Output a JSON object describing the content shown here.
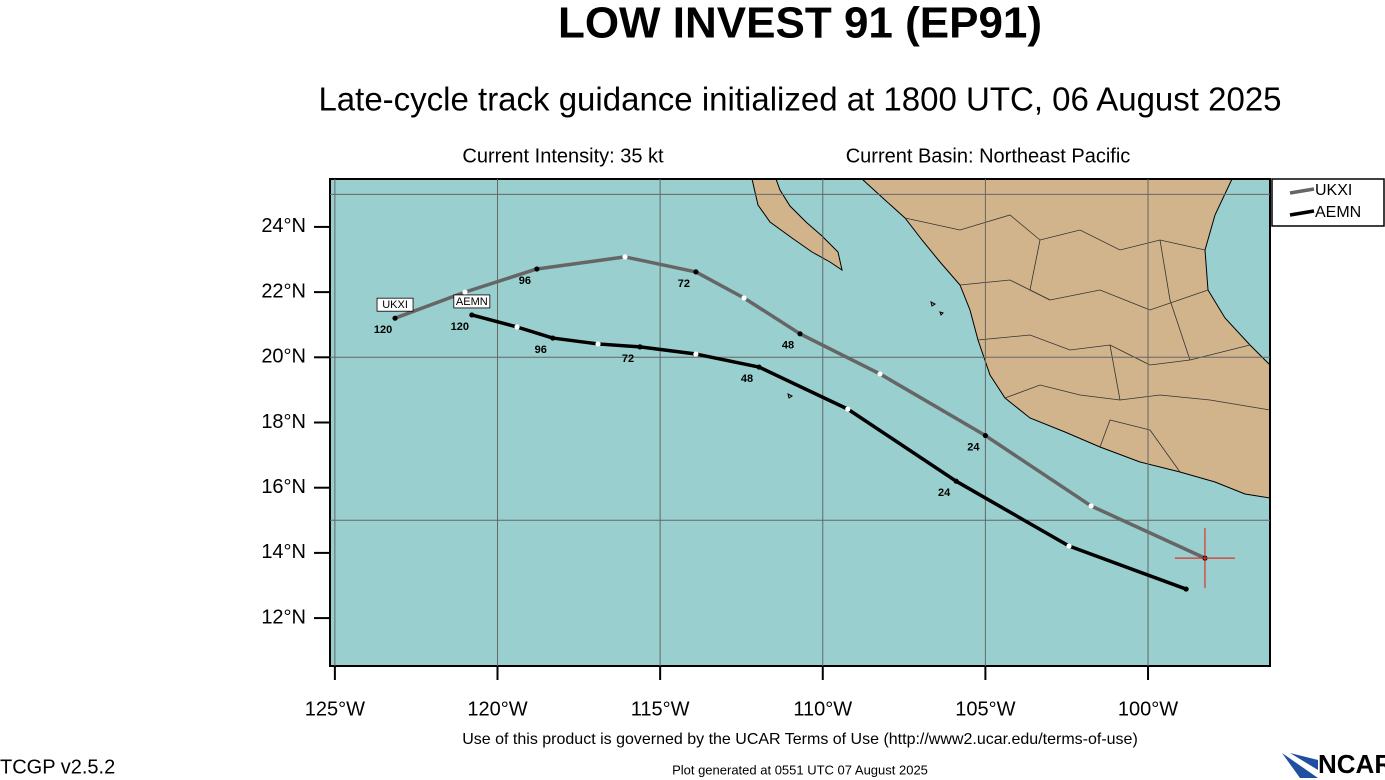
{
  "chart_data": {
    "type": "track",
    "title": "LOW INVEST 91 (EP91)",
    "subtitle": "Late-cycle track guidance initialized at 1800 UTC, 06 August 2025",
    "intensity": "Current Intensity: 35 kt",
    "basin": "Current Basin: Northeast Pacific",
    "xlim": [
      -125.15,
      -96.25
    ],
    "ylim": [
      10.53,
      25.47
    ],
    "xticks": [
      {
        "value": -125,
        "label": "125°W"
      },
      {
        "value": -120,
        "label": "120°W"
      },
      {
        "value": -115,
        "label": "115°W"
      },
      {
        "value": -110,
        "label": "110°W"
      },
      {
        "value": -105,
        "label": "105°W"
      },
      {
        "value": -100,
        "label": "100°W"
      }
    ],
    "yticks": [
      {
        "value": 12,
        "label": "12°N"
      },
      {
        "value": 14,
        "label": "14°N"
      },
      {
        "value": 16,
        "label": "16°N"
      },
      {
        "value": 18,
        "label": "18°N"
      },
      {
        "value": 20,
        "label": "20°N"
      },
      {
        "value": 22,
        "label": "22°N"
      },
      {
        "value": 24,
        "label": "24°N"
      }
    ],
    "grid_x": [
      -125,
      -120,
      -115,
      -110,
      -105,
      -100
    ],
    "grid_y": [
      15,
      20,
      25
    ],
    "current_position": {
      "lon": -98.25,
      "lat": 13.84,
      "color": "#e0312b"
    },
    "series": [
      {
        "name": "UKXI",
        "color": "#666666",
        "hours": [
          0,
          12,
          24,
          36,
          48,
          60,
          72,
          84,
          96,
          108,
          120
        ],
        "x": [
          -98.25,
          -101.75,
          -105.0,
          -108.24,
          -110.7,
          -112.42,
          -113.9,
          -116.08,
          -118.79,
          -121.0,
          -123.15
        ],
        "y": [
          13.84,
          15.44,
          17.6,
          19.49,
          20.72,
          21.82,
          22.62,
          23.08,
          22.71,
          22.0,
          21.2
        ]
      },
      {
        "name": "AEMN",
        "color": "#000000",
        "hours": [
          0,
          12,
          24,
          36,
          48,
          60,
          72,
          84,
          96,
          108,
          120
        ],
        "x": [
          -98.83,
          -102.43,
          -105.9,
          -109.23,
          -111.96,
          -113.9,
          -115.62,
          -116.91,
          -118.3,
          -119.4,
          -120.79
        ],
        "y": [
          12.89,
          14.21,
          16.2,
          18.41,
          19.7,
          20.1,
          20.32,
          20.41,
          20.59,
          20.93,
          21.3
        ]
      }
    ],
    "terms": "Use of this product is governed by the UCAR Terms of Use (http://www2.ucar.edu/terms-of-use)",
    "version": "TCGP v2.5.2",
    "generated": "Plot generated at 0551 UTC   07 August 2025",
    "logo": "NCAR"
  }
}
